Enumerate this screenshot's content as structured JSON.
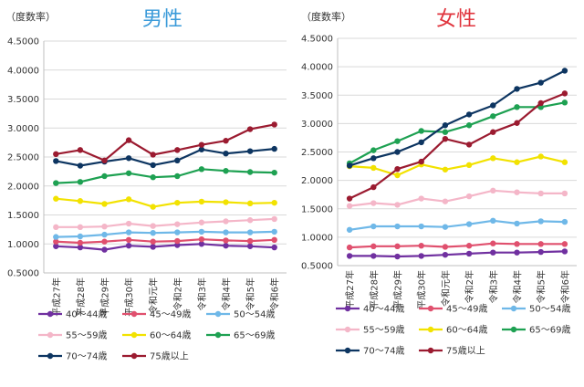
{
  "categories": [
    "平成27年",
    "平成28年",
    "平成29年",
    "平成30年",
    "令和元年",
    "令和2年",
    "令和3年",
    "令和4年",
    "令和5年",
    "令和6年"
  ],
  "chart_data": [
    {
      "type": "line",
      "title": "男性",
      "title_color": "#3a9ad9",
      "ylabel": "（度数率）",
      "ylim": [
        0.5,
        4.5
      ],
      "ytick_step": 0.5,
      "ytick_decimals": 4,
      "legend_position": "bottom",
      "series": [
        {
          "name": "40～44歳",
          "color": "#7030a0",
          "values": [
            0.96,
            0.94,
            0.9,
            0.97,
            0.95,
            0.98,
            1.0,
            0.97,
            0.96,
            0.94
          ]
        },
        {
          "name": "45～49歳",
          "color": "#e0506e",
          "values": [
            1.04,
            1.02,
            1.04,
            1.07,
            1.04,
            1.05,
            1.08,
            1.06,
            1.05,
            1.07
          ]
        },
        {
          "name": "50～54歳",
          "color": "#6fb8e8",
          "values": [
            1.12,
            1.13,
            1.16,
            1.2,
            1.19,
            1.2,
            1.21,
            1.2,
            1.2,
            1.21
          ]
        },
        {
          "name": "55～59歳",
          "color": "#f4b6c8",
          "values": [
            1.29,
            1.29,
            1.3,
            1.35,
            1.31,
            1.34,
            1.37,
            1.39,
            1.41,
            1.43
          ]
        },
        {
          "name": "60～64歳",
          "color": "#f2e200",
          "values": [
            1.78,
            1.74,
            1.69,
            1.77,
            1.64,
            1.71,
            1.73,
            1.72,
            1.7,
            1.71
          ]
        },
        {
          "name": "65～69歳",
          "color": "#1ea152",
          "values": [
            2.05,
            2.07,
            2.17,
            2.22,
            2.15,
            2.17,
            2.29,
            2.26,
            2.24,
            2.23
          ]
        },
        {
          "name": "70～74歳",
          "color": "#0d3561",
          "values": [
            2.43,
            2.35,
            2.42,
            2.48,
            2.36,
            2.44,
            2.63,
            2.56,
            2.6,
            2.64
          ]
        },
        {
          "name": "75歳以上",
          "color": "#9b1b30",
          "values": [
            2.55,
            2.62,
            2.44,
            2.79,
            2.54,
            2.62,
            2.71,
            2.78,
            2.98,
            3.06
          ]
        }
      ]
    },
    {
      "type": "line",
      "title": "女性",
      "title_color": "#e0343d",
      "ylabel": "（度数率）",
      "ylim": [
        0.5,
        4.5
      ],
      "ytick_step": 0.5,
      "ytick_decimals": 4,
      "legend_position": "bottom",
      "series": [
        {
          "name": "40～44歳",
          "color": "#7030a0",
          "values": [
            0.67,
            0.67,
            0.66,
            0.67,
            0.69,
            0.71,
            0.73,
            0.73,
            0.74,
            0.75
          ]
        },
        {
          "name": "45～49歳",
          "color": "#e0506e",
          "values": [
            0.82,
            0.84,
            0.84,
            0.85,
            0.83,
            0.85,
            0.89,
            0.88,
            0.88,
            0.88
          ]
        },
        {
          "name": "50～54歳",
          "color": "#6fb8e8",
          "values": [
            1.13,
            1.19,
            1.19,
            1.19,
            1.18,
            1.23,
            1.29,
            1.24,
            1.28,
            1.27
          ]
        },
        {
          "name": "55～59歳",
          "color": "#f4b6c8",
          "values": [
            1.55,
            1.6,
            1.57,
            1.68,
            1.63,
            1.72,
            1.82,
            1.79,
            1.77,
            1.77
          ]
        },
        {
          "name": "60～64歳",
          "color": "#f2e200",
          "values": [
            2.25,
            2.22,
            2.09,
            2.28,
            2.19,
            2.27,
            2.39,
            2.32,
            2.42,
            2.32
          ]
        },
        {
          "name": "65～69歳",
          "color": "#1ea152",
          "values": [
            2.3,
            2.53,
            2.69,
            2.87,
            2.85,
            2.97,
            3.13,
            3.29,
            3.29,
            3.37
          ]
        },
        {
          "name": "70～74歳",
          "color": "#0d3561",
          "values": [
            2.26,
            2.39,
            2.5,
            2.67,
            2.97,
            3.16,
            3.32,
            3.61,
            3.72,
            3.93
          ]
        },
        {
          "name": "75歳以上",
          "color": "#9b1b30",
          "values": [
            1.68,
            1.88,
            2.2,
            2.33,
            2.73,
            2.63,
            2.85,
            3.01,
            3.36,
            3.53
          ]
        }
      ]
    }
  ]
}
